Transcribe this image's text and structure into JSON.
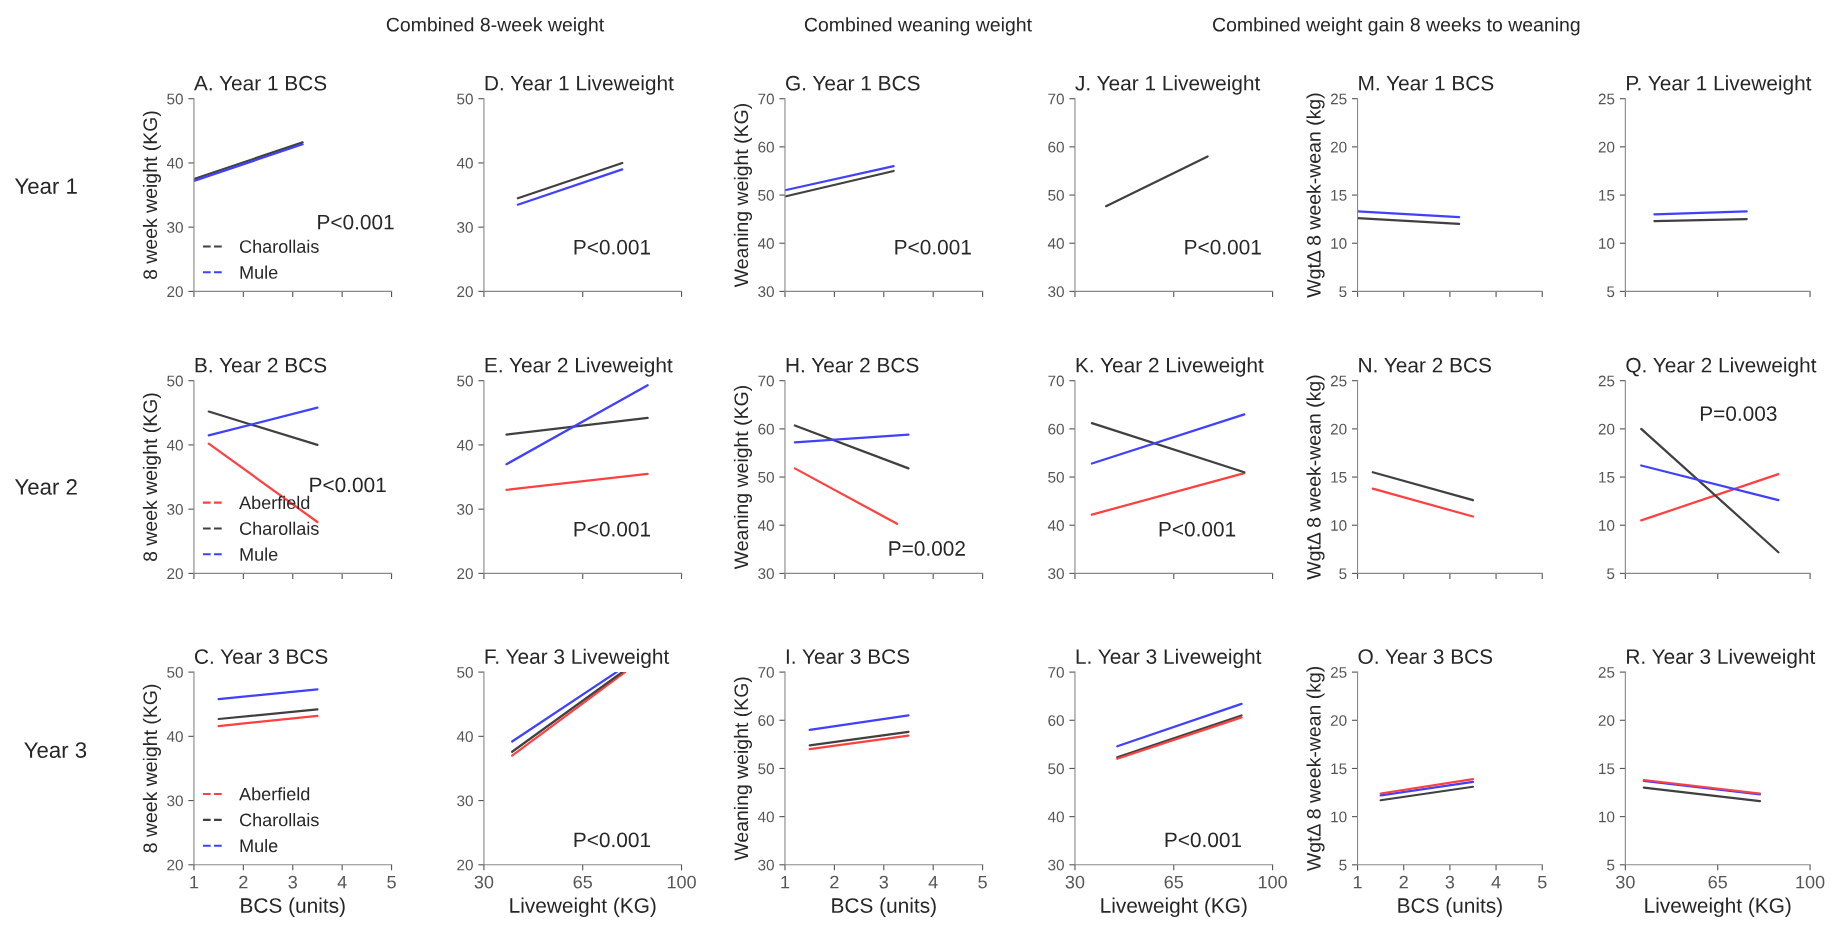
{
  "chart_data": [
    {
      "type": "line",
      "title": "A. Year 1 BCS",
      "ylabel": "8 week weight (KG)",
      "x": [
        1.0,
        3.2
      ],
      "xlim": [
        1,
        5
      ],
      "xticks": [
        1,
        2,
        3,
        4,
        5
      ],
      "ylim": [
        20,
        50
      ],
      "yticks": [
        20,
        30,
        40,
        50
      ],
      "tick_labels": "y",
      "legend": "bottom left",
      "annotations": [
        "Combined 8-week weight",
        "Year 1",
        "P<0.001"
      ],
      "series": [
        {
          "name": "Charollais",
          "color": "#404040",
          "values": [
            37.5,
            43.2
          ]
        },
        {
          "name": "Mule",
          "color": "#4040ff",
          "values": [
            37.2,
            42.9
          ]
        }
      ]
    },
    {
      "type": "line",
      "title": "D. Year 1 Liveweight",
      "x": [
        42,
        79
      ],
      "xlim": [
        30,
        100
      ],
      "xticks": [
        30,
        65,
        100
      ],
      "ylim": [
        20,
        50
      ],
      "yticks": [
        20,
        30,
        40,
        50
      ],
      "tick_labels": "y",
      "annotations": [
        "P<0.001"
      ],
      "series": [
        {
          "color": "#404040",
          "values": [
            34.5,
            40.0
          ]
        },
        {
          "color": "#4040ff",
          "values": [
            33.5,
            39.0
          ]
        }
      ]
    },
    {
      "type": "line",
      "title": "G. Year 1 BCS",
      "ylabel": "Weaning weight (KG)",
      "x": [
        1.0,
        3.2
      ],
      "xlim": [
        1,
        5
      ],
      "xticks": [
        1,
        2,
        3,
        4,
        5
      ],
      "ylim": [
        30,
        70
      ],
      "yticks": [
        30,
        40,
        50,
        60,
        70
      ],
      "tick_labels": "y",
      "annotations": [
        "Combined weaning weight",
        "P<0.001"
      ],
      "series": [
        {
          "color": "#404040",
          "values": [
            49.7,
            55.0
          ]
        },
        {
          "color": "#4040ff",
          "values": [
            51.0,
            56.0
          ]
        }
      ]
    },
    {
      "type": "line",
      "title": "J. Year 1 Liveweight",
      "x": [
        41,
        77
      ],
      "xlim": [
        30,
        100
      ],
      "xticks": [
        30,
        65,
        100
      ],
      "ylim": [
        30,
        70
      ],
      "yticks": [
        30,
        40,
        50,
        60,
        70
      ],
      "tick_labels": "y",
      "annotations": [
        "P<0.001"
      ],
      "series": [
        {
          "color": "#4040ff",
          "values": [
            null,
            null
          ]
        },
        {
          "color": "#404040",
          "values": [
            47.7,
            58.0
          ]
        }
      ]
    },
    {
      "type": "line",
      "title": "M. Year 1 BCS",
      "ylabel": "WgtΔ 8 week-wean (kg)",
      "x": [
        1.0,
        3.2
      ],
      "xlim": [
        1,
        5
      ],
      "xticks": [
        1,
        2,
        3,
        4,
        5
      ],
      "ylim": [
        5,
        25
      ],
      "yticks": [
        5,
        10,
        15,
        20,
        25
      ],
      "tick_labels": "y",
      "annotations": [
        "Combined weight gain 8 weeks to weaning"
      ],
      "series": [
        {
          "color": "#404040",
          "values": [
            12.6,
            12.0
          ]
        },
        {
          "color": "#4040ff",
          "values": [
            13.3,
            12.7
          ]
        }
      ]
    },
    {
      "type": "line",
      "title": "P. Year 1 Liveweight",
      "x": [
        41,
        76
      ],
      "xlim": [
        30,
        100
      ],
      "xticks": [
        30,
        65,
        100
      ],
      "ylim": [
        5,
        25
      ],
      "yticks": [
        5,
        10,
        15,
        20,
        25
      ],
      "tick_labels": "y",
      "series": [
        {
          "color": "#404040",
          "values": [
            12.3,
            12.5
          ]
        },
        {
          "color": "#4040ff",
          "values": [
            13.0,
            13.3
          ]
        }
      ]
    },
    {
      "type": "line",
      "title": "B. Year 2 BCS",
      "ylabel": "8 week weight (KG)",
      "x": [
        1.3,
        3.5
      ],
      "xlim": [
        1,
        5
      ],
      "xticks": [
        1,
        2,
        3,
        4,
        5
      ],
      "ylim": [
        20,
        50
      ],
      "yticks": [
        20,
        30,
        40,
        50
      ],
      "tick_labels": "y",
      "legend": "bottom left",
      "annotations": [
        "Year 2",
        "P<0.001"
      ],
      "series": [
        {
          "name": "Aberfield",
          "color": "#ff4040",
          "values": [
            40.2,
            28.0
          ]
        },
        {
          "name": "Charollais",
          "color": "#404040",
          "values": [
            45.2,
            40.0
          ]
        },
        {
          "name": "Mule",
          "color": "#4040ff",
          "values": [
            41.5,
            45.8
          ]
        }
      ]
    },
    {
      "type": "line",
      "title": "E. Year 2 Liveweight",
      "x": [
        38,
        88
      ],
      "xlim": [
        30,
        100
      ],
      "xticks": [
        30,
        65,
        100
      ],
      "ylim": [
        20,
        50
      ],
      "yticks": [
        20,
        30,
        40,
        50
      ],
      "tick_labels": "y",
      "annotations": [
        "P<0.001"
      ],
      "series": [
        {
          "color": "#ff4040",
          "values": [
            33.0,
            35.5
          ]
        },
        {
          "color": "#404040",
          "values": [
            41.6,
            44.2
          ]
        },
        {
          "color": "#4040ff",
          "values": [
            37.0,
            49.3
          ]
        }
      ]
    },
    {
      "type": "line",
      "title": "H. Year 2 BCS",
      "ylabel": "Weaning weight (KG)",
      "x": [
        1.2,
        3.5
      ],
      "xlim": [
        1,
        5
      ],
      "xticks": [
        1,
        2,
        3,
        4,
        5
      ],
      "ylim": [
        30,
        70
      ],
      "yticks": [
        30,
        40,
        50,
        60,
        70
      ],
      "tick_labels": "y",
      "annotations": [
        "P=0.002"
      ],
      "series": [
        {
          "color": "#ff4040",
          "x": [
            1.2,
            3.27
          ],
          "values": [
            51.8,
            40.3
          ]
        },
        {
          "color": "#404040",
          "values": [
            60.7,
            51.8
          ]
        },
        {
          "color": "#4040ff",
          "values": [
            57.2,
            58.8
          ]
        }
      ]
    },
    {
      "type": "line",
      "title": "K. Year 2 Liveweight",
      "x": [
        36,
        90
      ],
      "xlim": [
        30,
        100
      ],
      "xticks": [
        30,
        65,
        100
      ],
      "ylim": [
        30,
        70
      ],
      "yticks": [
        30,
        40,
        50,
        60,
        70
      ],
      "tick_labels": "y",
      "annotations": [
        "P<0.001"
      ],
      "series": [
        {
          "color": "#ff4040",
          "values": [
            42.2,
            50.8
          ]
        },
        {
          "color": "#404040",
          "values": [
            61.2,
            51.0
          ]
        },
        {
          "color": "#4040ff",
          "values": [
            52.8,
            63.0
          ]
        }
      ]
    },
    {
      "type": "line",
      "title": "N. Year 2 BCS",
      "ylabel": "WgtΔ 8 week-wean (kg)",
      "x": [
        1.33,
        3.5
      ],
      "xlim": [
        1,
        5
      ],
      "xticks": [
        1,
        2,
        3,
        4,
        5
      ],
      "ylim": [
        5,
        25
      ],
      "yticks": [
        5,
        10,
        15,
        20,
        25
      ],
      "tick_labels": "y",
      "series": [
        {
          "color": "#ff4040",
          "values": [
            13.8,
            10.9
          ]
        },
        {
          "color": "#4040ff",
          "values": [
            null,
            null
          ]
        },
        {
          "color": "#404040",
          "values": [
            15.5,
            12.6
          ]
        }
      ]
    },
    {
      "type": "line",
      "title": "Q. Year 2 Liveweight",
      "x": [
        36,
        88
      ],
      "xlim": [
        30,
        100
      ],
      "xticks": [
        30,
        65,
        100
      ],
      "ylim": [
        5,
        25
      ],
      "yticks": [
        5,
        10,
        15,
        20,
        25
      ],
      "tick_labels": "y",
      "annotations": [
        "P=0.003"
      ],
      "series": [
        {
          "color": "#ff4040",
          "values": [
            10.5,
            15.3
          ]
        },
        {
          "color": "#404040",
          "values": [
            20.0,
            7.2
          ]
        },
        {
          "color": "#4040ff",
          "values": [
            16.2,
            12.6
          ]
        }
      ]
    },
    {
      "type": "line",
      "title": "C. Year 3 BCS",
      "ylabel": "8 week weight (KG)",
      "xlabel": "BCS (units)",
      "x": [
        1.5,
        3.5
      ],
      "xlim": [
        1,
        5
      ],
      "xticks": [
        1,
        2,
        3,
        4,
        5
      ],
      "ylim": [
        20,
        50
      ],
      "yticks": [
        20,
        30,
        40,
        50
      ],
      "legend": "bottom left",
      "annotations": [
        "Year 3"
      ],
      "series": [
        {
          "name": "Aberfield",
          "color": "#ff4040",
          "values": [
            41.6,
            43.2
          ]
        },
        {
          "name": "Charollais",
          "color": "#404040",
          "values": [
            42.7,
            44.2
          ]
        },
        {
          "name": "Mule",
          "color": "#4040ff",
          "values": [
            45.8,
            47.3
          ]
        }
      ]
    },
    {
      "type": "line",
      "title": "F. Year 3 Liveweight",
      "xlabel": "Liveweight (KG)",
      "xlim": [
        30,
        100
      ],
      "xticks": [
        30,
        65,
        100
      ],
      "ylim": [
        20,
        50
      ],
      "yticks": [
        20,
        30,
        40,
        50
      ],
      "annotations": [
        "P<0.001"
      ],
      "series": [
        {
          "color": "#ff4040",
          "x": [
            40,
            80
          ],
          "values": [
            37.0,
            50.0
          ]
        },
        {
          "color": "#404040",
          "x": [
            40,
            79
          ],
          "values": [
            37.6,
            50.0
          ]
        },
        {
          "color": "#4040ff",
          "x": [
            40,
            77
          ],
          "values": [
            39.2,
            50.0
          ]
        }
      ]
    },
    {
      "type": "line",
      "title": "I. Year 3 BCS",
      "ylabel": "Weaning weight (KG)",
      "xlabel": "BCS (units)",
      "x": [
        1.5,
        3.5
      ],
      "xlim": [
        1,
        5
      ],
      "xticks": [
        1,
        2,
        3,
        4,
        5
      ],
      "ylim": [
        30,
        70
      ],
      "yticks": [
        30,
        40,
        50,
        60,
        70
      ],
      "series": [
        {
          "color": "#ff4040",
          "values": [
            54.0,
            56.8
          ]
        },
        {
          "color": "#404040",
          "values": [
            54.8,
            57.6
          ]
        },
        {
          "color": "#4040ff",
          "values": [
            58.0,
            61.0
          ]
        }
      ]
    },
    {
      "type": "line",
      "title": "L. Year 3 Liveweight",
      "xlabel": "Liveweight (KG)",
      "x": [
        45,
        89
      ],
      "xlim": [
        30,
        100
      ],
      "xticks": [
        30,
        65,
        100
      ],
      "ylim": [
        30,
        70
      ],
      "yticks": [
        30,
        40,
        50,
        60,
        70
      ],
      "annotations": [
        "P<0.001"
      ],
      "series": [
        {
          "color": "#4040ff",
          "values": [
            54.6,
            63.4
          ]
        },
        {
          "color": "#404040",
          "values": [
            52.3,
            61.0
          ]
        },
        {
          "color": "#ff4040",
          "values": [
            52.0,
            60.6
          ]
        }
      ]
    },
    {
      "type": "line",
      "title": "O. Year 3 BCS",
      "ylabel": "WgtΔ 8 week-wean (kg)",
      "xlabel": "BCS (units)",
      "x": [
        1.5,
        3.5
      ],
      "xlim": [
        1,
        5
      ],
      "xticks": [
        1,
        2,
        3,
        4,
        5
      ],
      "ylim": [
        5,
        25
      ],
      "yticks": [
        5,
        10,
        15,
        20,
        25
      ],
      "series": [
        {
          "color": "#404040",
          "values": [
            11.7,
            13.1
          ]
        },
        {
          "color": "#4040ff",
          "values": [
            12.2,
            13.6
          ]
        },
        {
          "color": "#ff4040",
          "values": [
            12.4,
            13.9
          ]
        }
      ]
    },
    {
      "type": "line",
      "title": "R. Year 3 Liveweight",
      "xlabel": "Liveweight (KG)",
      "x": [
        37,
        81
      ],
      "xlim": [
        30,
        100
      ],
      "xticks": [
        30,
        65,
        100
      ],
      "ylim": [
        5,
        25
      ],
      "yticks": [
        5,
        10,
        15,
        20,
        25
      ],
      "series": [
        {
          "color": "#404040",
          "values": [
            13.0,
            11.6
          ]
        },
        {
          "color": "#4040ff",
          "values": [
            13.7,
            12.3
          ]
        },
        {
          "color": "#ff4040",
          "values": [
            13.8,
            12.4
          ]
        }
      ]
    }
  ]
}
